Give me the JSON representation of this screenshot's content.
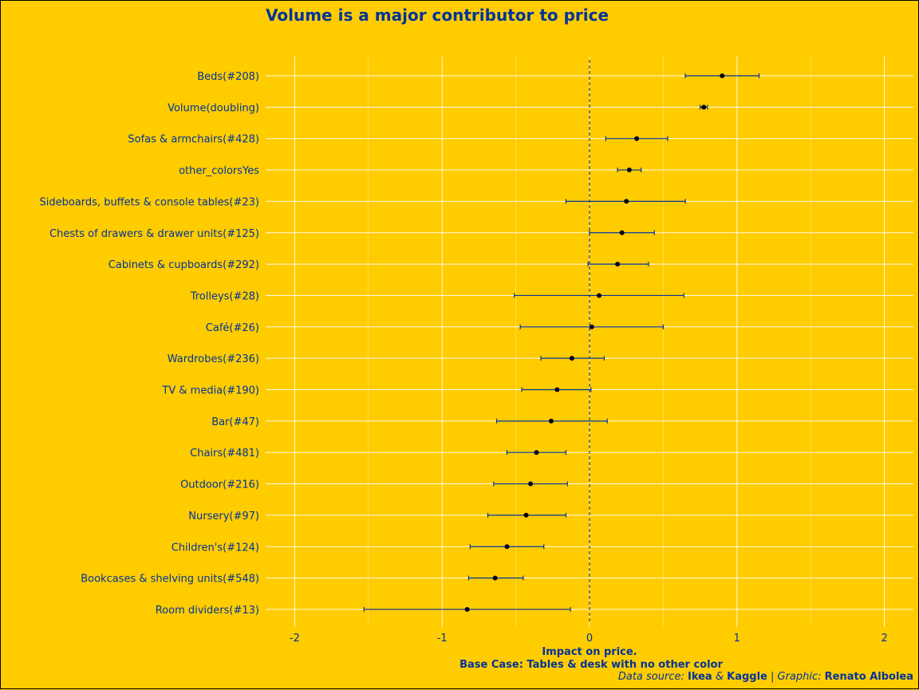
{
  "colors": {
    "background": "#FFCC00",
    "text": "#003399",
    "grid": "#FFFFFF",
    "errorbar": "#003399",
    "point": "#000000",
    "zero_line": "#334466"
  },
  "chart_data": {
    "type": "scatter",
    "style": "coefficient-plot-with-error-bars",
    "title": "Volume is a major contributor to price",
    "xlabel_line1": "Impact on price.",
    "xlabel_line2": "Base Case: Tables & desk with no other color",
    "ylabel": "",
    "xlim": [
      -2.2,
      2.2
    ],
    "x_ticks": [
      -2,
      -1,
      0,
      1,
      2
    ],
    "x_tick_labels": [
      "-2",
      "-1",
      "0",
      "1",
      "2"
    ],
    "grid": true,
    "reference_line_x": 0,
    "points": [
      {
        "label": "Beds(#208)",
        "estimate": 0.9,
        "low": 0.65,
        "high": 1.15
      },
      {
        "label": "Volume(doubling)",
        "estimate": 0.775,
        "low": 0.75,
        "high": 0.8
      },
      {
        "label": "Sofas & armchairs(#428)",
        "estimate": 0.32,
        "low": 0.11,
        "high": 0.53
      },
      {
        "label": "other_colorsYes",
        "estimate": 0.27,
        "low": 0.19,
        "high": 0.35
      },
      {
        "label": "Sideboards, buffets & console tables(#23)",
        "estimate": 0.25,
        "low": -0.16,
        "high": 0.65
      },
      {
        "label": "Chests of drawers & drawer units(#125)",
        "estimate": 0.22,
        "low": 0.0,
        "high": 0.44
      },
      {
        "label": "Cabinets & cupboards(#292)",
        "estimate": 0.19,
        "low": -0.01,
        "high": 0.4
      },
      {
        "label": "Trolleys(#28)",
        "estimate": 0.065,
        "low": -0.51,
        "high": 0.64
      },
      {
        "label": "Café(#26)",
        "estimate": 0.015,
        "low": -0.47,
        "high": 0.5
      },
      {
        "label": "Wardrobes(#236)",
        "estimate": -0.12,
        "low": -0.33,
        "high": 0.1
      },
      {
        "label": "TV & media(#190)",
        "estimate": -0.22,
        "low": -0.46,
        "high": 0.01
      },
      {
        "label": "Bar(#47)",
        "estimate": -0.26,
        "low": -0.63,
        "high": 0.12
      },
      {
        "label": "Chairs(#481)",
        "estimate": -0.36,
        "low": -0.56,
        "high": -0.16
      },
      {
        "label": "Outdoor(#216)",
        "estimate": -0.4,
        "low": -0.65,
        "high": -0.15
      },
      {
        "label": "Nursery(#97)",
        "estimate": -0.43,
        "low": -0.69,
        "high": -0.16
      },
      {
        "label": "Children's(#124)",
        "estimate": -0.56,
        "low": -0.81,
        "high": -0.31
      },
      {
        "label": "Bookcases & shelving units(#548)",
        "estimate": -0.64,
        "low": -0.82,
        "high": -0.45
      },
      {
        "label": "Room dividers(#13)",
        "estimate": -0.83,
        "low": -1.53,
        "high": -0.13
      }
    ]
  },
  "caption": {
    "source_prefix": "Data source: ",
    "source_1": "Ikea",
    "source_join": " & ",
    "source_2": "Kaggle",
    "separator": " | ",
    "graphic_prefix": "Graphic: ",
    "author": "Renato Albolea"
  }
}
